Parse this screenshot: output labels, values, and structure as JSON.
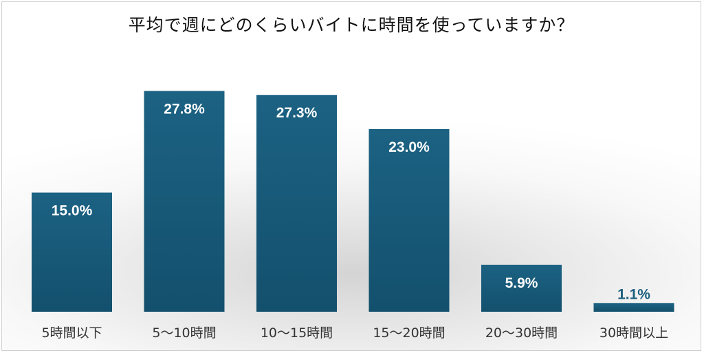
{
  "chart_data": {
    "type": "bar",
    "title": "平均で週にどのくらいバイトに時間を使っていますか？",
    "categories": [
      "5時間以下",
      "5〜10時間",
      "10〜15時間",
      "15〜20時間",
      "20〜30時間",
      "30時間以上"
    ],
    "values": [
      15.0,
      27.8,
      27.3,
      23.0,
      5.9,
      1.1
    ],
    "data_labels": [
      "15.0%",
      "27.8%",
      "27.3%",
      "23.0%",
      "5.9%",
      "1.1%"
    ],
    "xlabel": "",
    "ylabel": "",
    "ylim": [
      0,
      30
    ],
    "grid": false,
    "legend": "none",
    "colors": {
      "bar": "#1b5e7e",
      "bar_dark": "#123f56",
      "label_inside": "#ffffff",
      "label_outside": "#1b5e7e"
    }
  }
}
